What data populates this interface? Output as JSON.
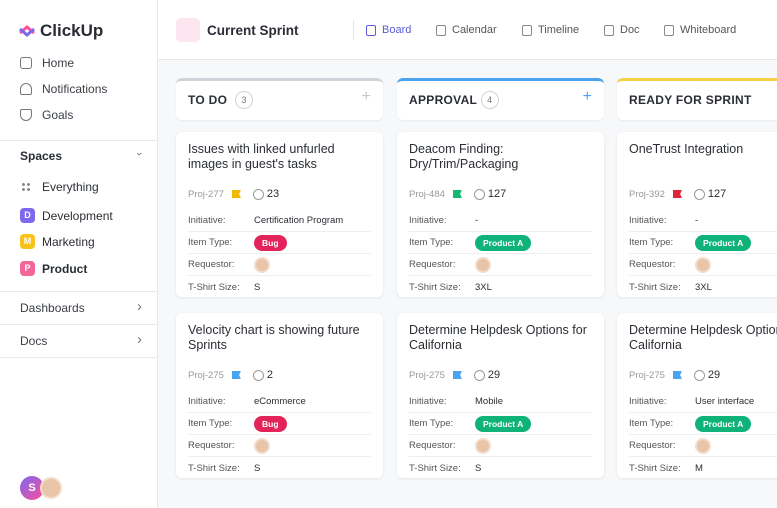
{
  "sidebar": {
    "logo": "ClickUp",
    "nav": [
      "Home",
      "Notifications",
      "Goals"
    ],
    "spaces_title": "Spaces",
    "spaces": [
      {
        "label": "Everything"
      },
      {
        "badge": "D",
        "color": "#7b68ee",
        "label": "Development"
      },
      {
        "badge": "M",
        "color": "#f7c21a",
        "label": "Marketing"
      },
      {
        "badge": "P",
        "color": "#f1679a",
        "label": "Product"
      }
    ],
    "sections": [
      "Dashboards",
      "Docs"
    ],
    "user_initial": "S"
  },
  "header": {
    "title": "Current Sprint",
    "tabs": [
      "Board",
      "Calendar",
      "Timeline",
      "Doc",
      "Whiteboard"
    ]
  },
  "field_labels": [
    "Initiative:",
    "Item Type:",
    "Requestor:",
    "T-Shirt Size:"
  ],
  "columns": [
    {
      "title": "TO DO",
      "count": 3,
      "color": "#d0d3d9",
      "cards": [
        {
          "title": "Issues with linked unfurled images in guest's tasks",
          "id": "Proj-277",
          "flag": "#f5b800",
          "points": 23,
          "initiative": "Certification Program",
          "item_type": "Bug",
          "item_type_color": "#e3245a",
          "size": "S"
        },
        {
          "title": "Velocity chart is showing future Sprints",
          "id": "Proj-275",
          "flag": "#4aa3f0",
          "points": 2,
          "initiative": "eCommerce",
          "item_type": "Bug",
          "item_type_color": "#e3245a",
          "size": "S"
        }
      ]
    },
    {
      "title": "APPROVAL",
      "count": 4,
      "color": "#49a3f0",
      "cards": [
        {
          "title": "Deacom Finding: Dry/Trim/Packaging",
          "id": "Proj-484",
          "flag": "#14b86e",
          "points": 127,
          "initiative": "-",
          "item_type": "Product A",
          "item_type_color": "#0fb37a",
          "size": "3XL"
        },
        {
          "title": "Determine Helpdesk Options for California",
          "id": "Proj-275",
          "flag": "#4aa3f0",
          "points": 29,
          "initiative": "Mobile",
          "item_type": "Product A",
          "item_type_color": "#0fb37a",
          "size": "S"
        }
      ]
    },
    {
      "title": "READY FOR SPRINT",
      "color": "#f7d046",
      "cards": [
        {
          "title": "OneTrust Integration",
          "id": "Proj-392",
          "flag": "#e5243b",
          "points": 127,
          "initiative": "-",
          "item_type": "Product A",
          "item_type_color": "#0fb37a",
          "size": "3XL"
        },
        {
          "title": "Determine Helpdesk Options for California",
          "id": "Proj-275",
          "flag": "#4aa3f0",
          "points": 29,
          "initiative": "User interface",
          "item_type": "Product A",
          "item_type_color": "#0fb37a",
          "size": "M"
        }
      ]
    }
  ]
}
